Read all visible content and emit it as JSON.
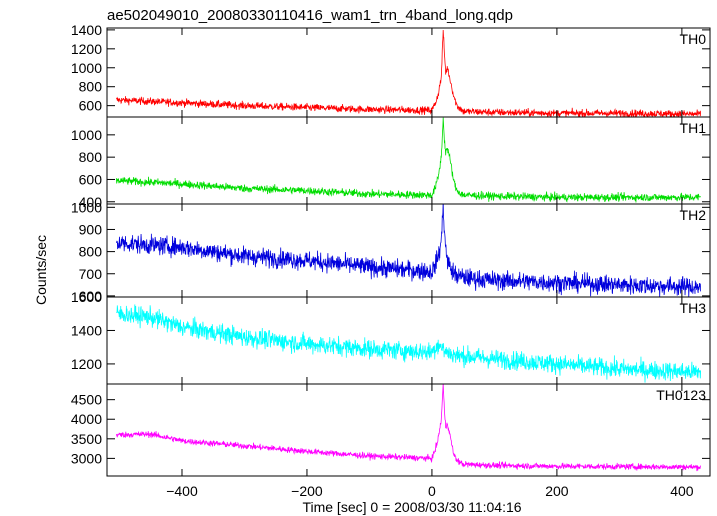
{
  "chart_data": {
    "type": "line",
    "title": "ae502049010_20080330110416_wam1_trn_4band_long.qdp",
    "xlabel": "Time [sec] 0 = 2008/03/30 11:04:16",
    "ylabel": "Counts/sec",
    "xlim": [
      -520,
      445
    ],
    "x_ticks": [
      -400,
      -200,
      0,
      200,
      400
    ],
    "grid": false,
    "x_range_data": [
      -505,
      430
    ],
    "panels": [
      {
        "name": "TH0",
        "color": "#ff0000",
        "ylim": [
          480,
          1420
        ],
        "y_ticks": [
          600,
          800,
          1000,
          1200,
          1400
        ],
        "series": {
          "name": "TH0",
          "x": [
            -505,
            -400,
            -300,
            -200,
            -100,
            0,
            5,
            10,
            15,
            18,
            20,
            22,
            25,
            30,
            35,
            40,
            50,
            100,
            200,
            300,
            430
          ],
          "y": [
            660,
            630,
            600,
            580,
            560,
            550,
            620,
            720,
            900,
            1400,
            1150,
            950,
            1000,
            850,
            700,
            600,
            540,
            530,
            520,
            520,
            510
          ]
        },
        "noise": 28
      },
      {
        "name": "TH1",
        "color": "#00dd00",
        "ylim": [
          380,
          1160
        ],
        "y_ticks": [
          400,
          600,
          800,
          1000
        ],
        "series": {
          "name": "TH1",
          "x": [
            -505,
            -400,
            -300,
            -200,
            -100,
            0,
            5,
            10,
            15,
            18,
            20,
            22,
            25,
            30,
            35,
            40,
            50,
            100,
            200,
            300,
            430
          ],
          "y": [
            590,
            560,
            520,
            500,
            470,
            460,
            520,
            620,
            800,
            1150,
            950,
            850,
            880,
            750,
            580,
            500,
            460,
            450,
            440,
            440,
            440
          ]
        },
        "noise": 25
      },
      {
        "name": "TH2",
        "color": "#0000dd",
        "ylim": [
          595,
          1015
        ],
        "y_ticks": [
          600,
          700,
          800,
          900,
          1000
        ],
        "series": {
          "name": "TH2",
          "x": [
            -505,
            -400,
            -300,
            -200,
            -100,
            0,
            8,
            12,
            15,
            18,
            20,
            23,
            30,
            40,
            60,
            100,
            200,
            300,
            430
          ],
          "y": [
            840,
            820,
            780,
            760,
            730,
            710,
            760,
            800,
            850,
            1010,
            900,
            780,
            720,
            690,
            680,
            670,
            660,
            650,
            640
          ]
        },
        "noise": 30
      },
      {
        "name": "TH3",
        "color": "#00ffff",
        "ylim": [
          1080,
          1600
        ],
        "y_ticks": [
          1200,
          1400,
          1600
        ],
        "series": {
          "name": "TH3",
          "x": [
            -505,
            -450,
            -400,
            -300,
            -200,
            -100,
            0,
            10,
            20,
            30,
            40,
            100,
            200,
            300,
            430
          ],
          "y": [
            1500,
            1480,
            1420,
            1360,
            1320,
            1290,
            1270,
            1320,
            1280,
            1260,
            1250,
            1230,
            1200,
            1170,
            1150
          ]
        },
        "noise": 40
      },
      {
        "name": "TH0123",
        "color": "#ff00ff",
        "ylim": [
          2550,
          4900
        ],
        "y_ticks": [
          3000,
          3500,
          4000,
          4500
        ],
        "series": {
          "name": "TH0123",
          "x": [
            -505,
            -450,
            -400,
            -300,
            -200,
            -100,
            0,
            5,
            10,
            15,
            18,
            20,
            22,
            25,
            30,
            35,
            40,
            50,
            100,
            200,
            300,
            430
          ],
          "y": [
            3600,
            3620,
            3450,
            3320,
            3180,
            3060,
            3000,
            3200,
            3500,
            4000,
            4900,
            4200,
            3800,
            3900,
            3500,
            3100,
            2950,
            2850,
            2820,
            2800,
            2790,
            2780
          ]
        },
        "noise": 55
      }
    ]
  }
}
